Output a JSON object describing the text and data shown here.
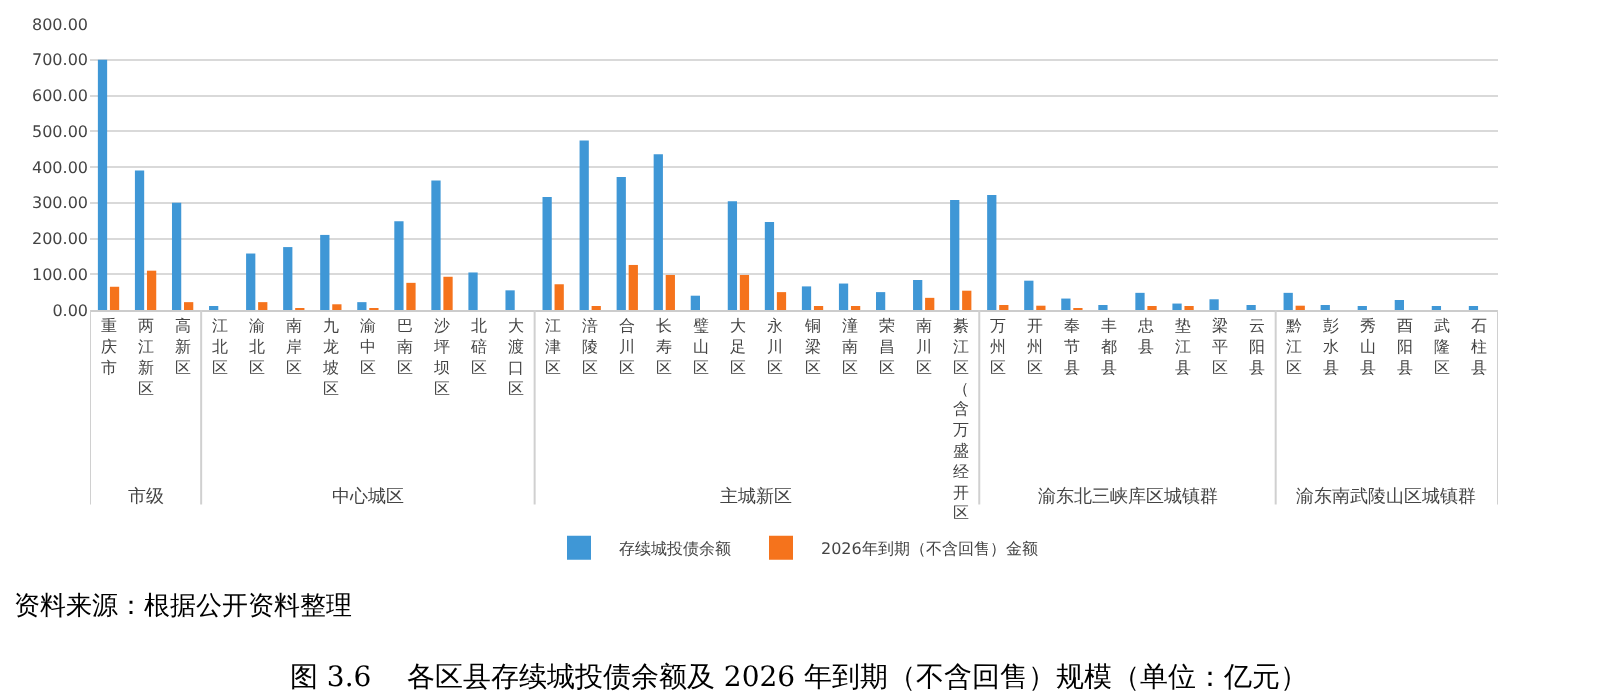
{
  "chart_data": {
    "type": "bar",
    "title": "图 3.6    各区县存续城投债余额及 2026 年到期（不含回售）规模（单位：亿元）",
    "categories": [
      "重庆市",
      "两江新区",
      "高新区",
      "江北区",
      "渝北区",
      "南岸区",
      "九龙坡区",
      "渝中区",
      "巴南区",
      "沙坪坝区",
      "北碚区",
      "大渡口区",
      "江津区",
      "涪陵区",
      "合川区",
      "长寿区",
      "璧山区",
      "大足区",
      "永川区",
      "铜梁区",
      "潼南区",
      "荣昌区",
      "南川区",
      "綦江区（含万盛经开区）",
      "万州区",
      "开州区",
      "奉节县",
      "丰都县",
      "忠县",
      "垫江县",
      "梁平区",
      "云阳县",
      "黔江区",
      "彭水县",
      "秀山县",
      "酉阳县",
      "武隆区",
      "石柱县"
    ],
    "series": [
      {
        "name": "存续城投债余额",
        "color": "#3f97d6",
        "values": [
          700,
          390,
          300,
          8,
          158,
          176,
          210,
          22,
          248,
          362,
          105,
          55,
          316,
          474,
          372,
          436,
          40,
          304,
          246,
          66,
          74,
          50,
          84,
          308,
          322,
          82,
          32,
          14,
          48,
          18,
          30,
          14,
          48,
          14,
          10,
          28,
          10,
          6
        ]
      },
      {
        "name": "2026年到期（不含回售）金额",
        "color": "#f5731c",
        "values": [
          65,
          110,
          22,
          null,
          22,
          5,
          16,
          5,
          76,
          93,
          null,
          null,
          72,
          8,
          126,
          98,
          null,
          98,
          50,
          8,
          6,
          null,
          34,
          54,
          14,
          12,
          4,
          null,
          6,
          6,
          null,
          null,
          12,
          null,
          null,
          null,
          null,
          null
        ]
      }
    ],
    "ylim": [
      0,
      800
    ],
    "yticks": [
      {
        "value": 0,
        "label": "0.00"
      },
      {
        "value": 100,
        "label": "100.00"
      },
      {
        "value": 200,
        "label": "200.00"
      },
      {
        "value": 300,
        "label": "300.00"
      },
      {
        "value": 400,
        "label": "400.00"
      },
      {
        "value": 500,
        "label": "500.00"
      },
      {
        "value": 600,
        "label": "600.00"
      },
      {
        "value": 700,
        "label": "700.00"
      },
      {
        "value": 800,
        "label": "800.00"
      }
    ],
    "grid": "y",
    "legend": "bottom",
    "annotations": [
      "市级",
      "中心城区",
      "主城新区",
      "渝东北三峡库区城镇群",
      "渝东南武陵山区城镇群",
      "资料来源：根据公开资料整理"
    ]
  }
}
